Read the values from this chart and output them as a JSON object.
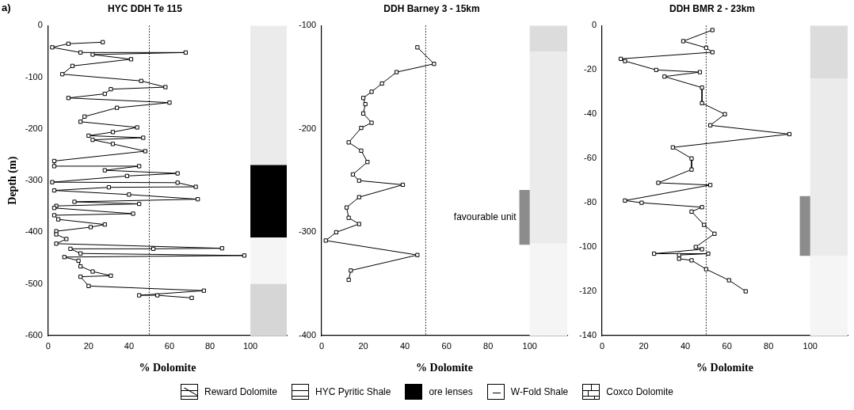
{
  "chart_data": [
    {
      "type": "line",
      "title": "HYC DDH Te 115",
      "xlabel": "% Dolomite",
      "ylabel": "Depth (m)",
      "annotations": [
        "a)"
      ],
      "marker": "square",
      "grid": false,
      "xlim": [
        0,
        118
      ],
      "xticks": [
        0,
        20,
        40,
        60,
        80,
        100
      ],
      "ylim": [
        -600,
        0
      ],
      "yticks": [
        -600,
        -500,
        -400,
        -300,
        -200,
        -100,
        0
      ],
      "ref_lines": [
        {
          "axis": "x",
          "value": 50,
          "label": null,
          "line_style": "dotted"
        }
      ],
      "bands": [
        {
          "axis": "y",
          "from": 0,
          "to": -270,
          "color": "#ebebeb"
        },
        {
          "axis": "y",
          "from": -270,
          "to": -410,
          "color": "#000000"
        },
        {
          "axis": "y",
          "from": -410,
          "to": -500,
          "color": "#f5f5f5"
        },
        {
          "axis": "y",
          "from": -500,
          "to": -600,
          "color": "#d6d6d6"
        }
      ],
      "series": [
        {
          "color": "#000000",
          "x": [
            27,
            10,
            2,
            16,
            68,
            22,
            41,
            12,
            7,
            46,
            58,
            31,
            28,
            10,
            60,
            34,
            18,
            16,
            44,
            32,
            20,
            47,
            22,
            32,
            48,
            3,
            3,
            45,
            28,
            64,
            39,
            2,
            64,
            73,
            30,
            3,
            40,
            74,
            13,
            45,
            4,
            3,
            42,
            3,
            5,
            28,
            21,
            4,
            4,
            9,
            4,
            86,
            52,
            11,
            16,
            97,
            8,
            15,
            16,
            22,
            31,
            16,
            20,
            77,
            45,
            54,
            71
          ],
          "values": [
            -32,
            -35,
            -42,
            -52,
            -52,
            -56,
            -65,
            -78,
            -94,
            -107,
            -119,
            -123,
            -132,
            -140,
            -149,
            -159,
            -176,
            -186,
            -197,
            -206,
            -213,
            -217,
            -221,
            -229,
            -243,
            -262,
            -272,
            -272,
            -280,
            -286,
            -291,
            -303,
            -304,
            -312,
            -313,
            -319,
            -327,
            -336,
            -341,
            -345,
            -349,
            -353,
            -364,
            -367,
            -375,
            -385,
            -390,
            -398,
            -404,
            -413,
            -422,
            -431,
            -432,
            -432,
            -441,
            -445,
            -448,
            -455,
            -466,
            -476,
            -484,
            -486,
            -504,
            -513,
            -522,
            -522,
            -527
          ]
        }
      ]
    },
    {
      "type": "line",
      "title": "DDH Barney 3 - 15km",
      "xlabel": "% Dolomite",
      "marker": "square",
      "grid": false,
      "xlim": [
        0,
        118
      ],
      "xticks": [
        0,
        20,
        40,
        60,
        80,
        100
      ],
      "ylim": [
        -400,
        -100
      ],
      "yticks": [
        -400,
        -300,
        -200,
        -100
      ],
      "ref_lines": [
        {
          "axis": "x",
          "value": 50,
          "label": null,
          "line_style": "dotted"
        }
      ],
      "bands": [
        {
          "axis": "y",
          "from": -100,
          "to": -125,
          "color": "#dcdcdc"
        },
        {
          "axis": "y",
          "from": -125,
          "to": -311,
          "color": "#ebebeb"
        },
        {
          "axis": "y",
          "from": -311,
          "to": -400,
          "color": "#f5f5f5"
        },
        {
          "axis": "y",
          "from": -259,
          "to": -312,
          "color": "#8c8c8c",
          "label": "favourable unit"
        }
      ],
      "series": [
        {
          "color": "#000000",
          "x": [
            46,
            54,
            36,
            29,
            24,
            20,
            21,
            20,
            24,
            19,
            13,
            19,
            22,
            15,
            18,
            39,
            18,
            12,
            13,
            18,
            7,
            2,
            46,
            14,
            13
          ],
          "values": [
            -121,
            -137,
            -145,
            -156,
            -164,
            -170,
            -176,
            -185,
            -194,
            -199,
            -213,
            -221,
            -232,
            -244,
            -250,
            -254,
            -266,
            -276,
            -286,
            -292,
            -300,
            -308,
            -322,
            -337,
            -346
          ]
        }
      ]
    },
    {
      "type": "line",
      "title": "DDH BMR 2 - 23km",
      "xlabel": "% Dolomite",
      "marker": "square",
      "grid": false,
      "xlim": [
        0,
        118
      ],
      "xticks": [
        0,
        20,
        40,
        60,
        80,
        100
      ],
      "ylim": [
        -140,
        0
      ],
      "yticks": [
        -140,
        -120,
        -100,
        -80,
        -60,
        -40,
        -20,
        0
      ],
      "ref_lines": [
        {
          "axis": "x",
          "value": 50,
          "label": null,
          "line_style": "dotted"
        }
      ],
      "bands": [
        {
          "axis": "y",
          "from": 0,
          "to": -24,
          "color": "#dcdcdc"
        },
        {
          "axis": "y",
          "from": -24,
          "to": -104,
          "color": "#ebebeb"
        },
        {
          "axis": "y",
          "from": -104,
          "to": -140,
          "color": "#f5f5f5"
        },
        {
          "axis": "y",
          "from": -77,
          "to": -104,
          "color": "#8c8c8c",
          "label": null
        }
      ],
      "series": [
        {
          "color": "#000000",
          "x": [
            53,
            39,
            50,
            53,
            9,
            11,
            26,
            47,
            30,
            48,
            48,
            59,
            52,
            90,
            34,
            43,
            43,
            27,
            52,
            11,
            19,
            48,
            43,
            49,
            54,
            45,
            48,
            25,
            51,
            37,
            37,
            43,
            50,
            61,
            69
          ],
          "values": [
            -2,
            -7,
            -10,
            -12,
            -15,
            -16,
            -20,
            -21,
            -23,
            -28,
            -35,
            -40,
            -45,
            -49,
            -55,
            -60,
            -65,
            -71,
            -72,
            -79,
            -80,
            -82,
            -84,
            -90,
            -94,
            -100,
            -101,
            -103,
            -103,
            -103.6,
            -105.3,
            -106,
            -110,
            -115,
            -120
          ]
        }
      ]
    },
    {
      "type": "other",
      "annotations": [
        "Reward Dolomite",
        "HYC Pyritic Shale",
        "ore lenses",
        "W-Fold Shale",
        "Coxco Dolomite"
      ]
    }
  ]
}
